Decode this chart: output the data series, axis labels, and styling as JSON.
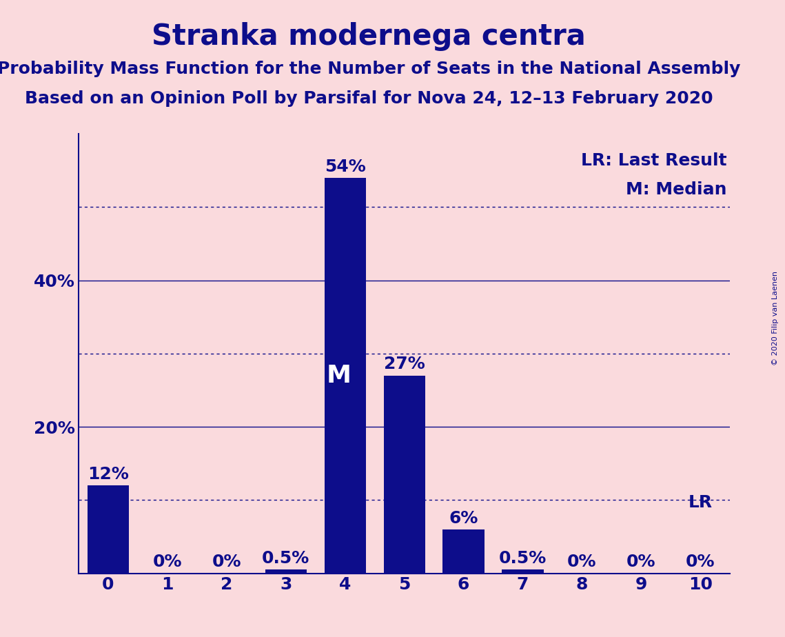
{
  "title": "Stranka modernega centra",
  "subtitle1": "Probability Mass Function for the Number of Seats in the National Assembly",
  "subtitle2": "Based on an Opinion Poll by Parsifal for Nova 24, 12–13 February 2020",
  "copyright": "© 2020 Filip van Laenen",
  "categories": [
    0,
    1,
    2,
    3,
    4,
    5,
    6,
    7,
    8,
    9,
    10
  ],
  "values": [
    12,
    0,
    0,
    0.5,
    54,
    27,
    6,
    0.5,
    0,
    0,
    0
  ],
  "bar_color": "#0D0D8B",
  "text_color": "#0D0D8B",
  "background_color": "#FADADD",
  "yticks": [
    20,
    40
  ],
  "ytick_labels": [
    "20%",
    "40%"
  ],
  "dotted_lines": [
    10,
    30,
    50
  ],
  "solid_lines": [
    20,
    40
  ],
  "median_seat": 4,
  "lr_seat": 10,
  "xlim": [
    -0.5,
    10.5
  ],
  "ylim": [
    0,
    60
  ],
  "title_fontsize": 30,
  "subtitle_fontsize": 18,
  "bar_label_fontsize": 18,
  "axis_tick_fontsize": 18,
  "annotation_fontsize": 18,
  "median_label_fontsize": 26,
  "copyright_fontsize": 8,
  "bar_width": 0.7
}
